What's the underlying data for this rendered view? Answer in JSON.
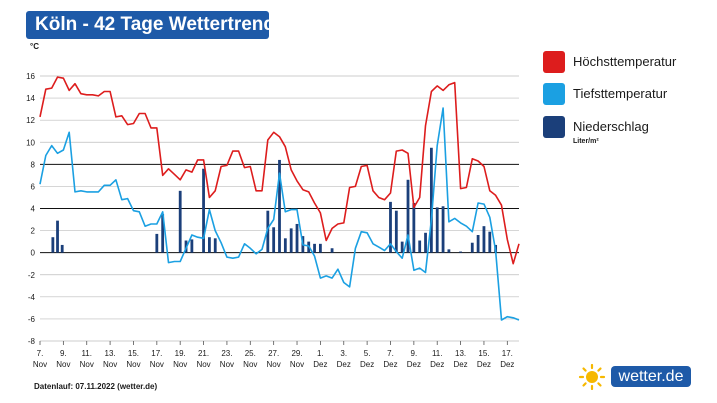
{
  "header": {
    "title": "Köln - 42 Tage Wettertrend"
  },
  "legend": {
    "items": [
      {
        "label": "Höchsttemperatur",
        "color": "#dd1d1d"
      },
      {
        "label": "Tiefsttemperatur",
        "color": "#1ba0e2"
      },
      {
        "label": "Niederschlag",
        "color": "#1b3f7a"
      }
    ],
    "precip_unit": "Liter/m²"
  },
  "footer": {
    "source": "Datenlauf: 07.11.2022 (wetter.de)"
  },
  "logo": {
    "text": "wetter.de"
  },
  "chart_data": {
    "type": "line",
    "ylabel": "°C",
    "ylim": [
      -8,
      16
    ],
    "yticks": [
      -8,
      -6,
      -4,
      -2,
      0,
      2,
      4,
      6,
      8,
      10,
      12,
      14,
      16
    ],
    "xlim": [
      7,
      48
    ],
    "x_ticks": [
      {
        "x": 7,
        "day": "7.",
        "month": "Nov"
      },
      {
        "x": 9,
        "day": "9.",
        "month": "Nov"
      },
      {
        "x": 11,
        "day": "11.",
        "month": "Nov"
      },
      {
        "x": 13,
        "day": "13.",
        "month": "Nov"
      },
      {
        "x": 15,
        "day": "15.",
        "month": "Nov"
      },
      {
        "x": 17,
        "day": "17.",
        "month": "Nov"
      },
      {
        "x": 19,
        "day": "19.",
        "month": "Nov"
      },
      {
        "x": 21,
        "day": "21.",
        "month": "Nov"
      },
      {
        "x": 23,
        "day": "23.",
        "month": "Nov"
      },
      {
        "x": 25,
        "day": "25.",
        "month": "Nov"
      },
      {
        "x": 27,
        "day": "27.",
        "month": "Nov"
      },
      {
        "x": 29,
        "day": "29.",
        "month": "Nov"
      },
      {
        "x": 31,
        "day": "1.",
        "month": "Dez"
      },
      {
        "x": 33,
        "day": "3.",
        "month": "Dez"
      },
      {
        "x": 35,
        "day": "5.",
        "month": "Dez"
      },
      {
        "x": 37,
        "day": "7.",
        "month": "Dez"
      },
      {
        "x": 39,
        "day": "9.",
        "month": "Dez"
      },
      {
        "x": 41,
        "day": "11.",
        "month": "Dez"
      },
      {
        "x": 43,
        "day": "13.",
        "month": "Dez"
      },
      {
        "x": 45,
        "day": "15.",
        "month": "Dez"
      },
      {
        "x": 47,
        "day": "17.",
        "month": "Dez"
      }
    ],
    "series": [
      {
        "name": "Höchsttemperatur",
        "color": "#dd1d1d",
        "points": [
          [
            7,
            12.3
          ],
          [
            7.5,
            14.8
          ],
          [
            8,
            14.9
          ],
          [
            8.5,
            15.9
          ],
          [
            9,
            15.8
          ],
          [
            9.5,
            14.7
          ],
          [
            10,
            15.3
          ],
          [
            10.5,
            14.4
          ],
          [
            11,
            14.3
          ],
          [
            11.5,
            14.3
          ],
          [
            12,
            14.2
          ],
          [
            12.5,
            14.6
          ],
          [
            13,
            14.6
          ],
          [
            13.5,
            12.3
          ],
          [
            14,
            12.4
          ],
          [
            14.5,
            11.6
          ],
          [
            15,
            11.7
          ],
          [
            15.5,
            12.6
          ],
          [
            16,
            12.6
          ],
          [
            16.5,
            11.3
          ],
          [
            17,
            11.3
          ],
          [
            17.5,
            7.0
          ],
          [
            18,
            7.6
          ],
          [
            18.5,
            7.1
          ],
          [
            19,
            6.6
          ],
          [
            19.5,
            7.5
          ],
          [
            20,
            7.3
          ],
          [
            20.5,
            8.4
          ],
          [
            21,
            8.4
          ],
          [
            21.5,
            5.0
          ],
          [
            22,
            5.6
          ],
          [
            22.5,
            7.8
          ],
          [
            23,
            7.9
          ],
          [
            23.5,
            9.2
          ],
          [
            24,
            9.2
          ],
          [
            24.5,
            7.7
          ],
          [
            25,
            7.8
          ],
          [
            25.5,
            5.6
          ],
          [
            26,
            5.6
          ],
          [
            26.5,
            10.2
          ],
          [
            27,
            10.9
          ],
          [
            27.5,
            10.5
          ],
          [
            28,
            9.6
          ],
          [
            28.5,
            7.5
          ],
          [
            29,
            6.5
          ],
          [
            29.5,
            5.7
          ],
          [
            30,
            5.5
          ],
          [
            30.5,
            4.5
          ],
          [
            31,
            3.6
          ],
          [
            31.5,
            1.1
          ],
          [
            32,
            2.2
          ],
          [
            32.5,
            2.6
          ],
          [
            33,
            2.7
          ],
          [
            33.5,
            5.9
          ],
          [
            34,
            6.0
          ],
          [
            34.5,
            7.8
          ],
          [
            35,
            7.9
          ],
          [
            35.5,
            5.6
          ],
          [
            36,
            5.0
          ],
          [
            36.5,
            4.8
          ],
          [
            37,
            5.4
          ],
          [
            37.5,
            9.2
          ],
          [
            38,
            9.3
          ],
          [
            38.5,
            9.0
          ],
          [
            39,
            4.1
          ],
          [
            39.5,
            5.0
          ],
          [
            40,
            11.5
          ],
          [
            40.5,
            14.6
          ],
          [
            41,
            15.1
          ],
          [
            41.5,
            14.7
          ],
          [
            42,
            15.2
          ],
          [
            42.5,
            15.4
          ],
          [
            43,
            5.8
          ],
          [
            43.5,
            5.9
          ],
          [
            44,
            8.5
          ],
          [
            44.5,
            8.3
          ],
          [
            45,
            7.8
          ],
          [
            45.5,
            5.6
          ],
          [
            46,
            5.2
          ],
          [
            46.5,
            4.3
          ],
          [
            47,
            1.2
          ],
          [
            47.5,
            -1.0
          ],
          [
            48,
            0.8
          ]
        ]
      },
      {
        "name": "Tiefsttemperatur",
        "color": "#1ba0e2",
        "points": [
          [
            7,
            6.2
          ],
          [
            7.5,
            8.8
          ],
          [
            8,
            9.7
          ],
          [
            8.5,
            9.0
          ],
          [
            9,
            9.3
          ],
          [
            9.5,
            10.9
          ],
          [
            10,
            5.5
          ],
          [
            10.5,
            5.6
          ],
          [
            11,
            5.5
          ],
          [
            11.5,
            5.5
          ],
          [
            12,
            5.5
          ],
          [
            12.5,
            6.1
          ],
          [
            13,
            6.1
          ],
          [
            13.5,
            6.6
          ],
          [
            14,
            4.8
          ],
          [
            14.5,
            4.9
          ],
          [
            15,
            3.8
          ],
          [
            15.5,
            3.7
          ],
          [
            16,
            2.4
          ],
          [
            16.5,
            2.6
          ],
          [
            17,
            2.6
          ],
          [
            17.5,
            3.7
          ],
          [
            18,
            -0.9
          ],
          [
            18.5,
            -0.8
          ],
          [
            19,
            -0.8
          ],
          [
            19.5,
            0.4
          ],
          [
            20,
            1.6
          ],
          [
            20.5,
            1.4
          ],
          [
            21,
            1.3
          ],
          [
            21.5,
            3.9
          ],
          [
            22,
            2.0
          ],
          [
            22.5,
            0.9
          ],
          [
            23,
            -0.4
          ],
          [
            23.5,
            -0.5
          ],
          [
            24,
            -0.4
          ],
          [
            24.5,
            0.8
          ],
          [
            25,
            0.4
          ],
          [
            25.5,
            -0.1
          ],
          [
            26,
            0.3
          ],
          [
            26.5,
            2.2
          ],
          [
            27,
            3.0
          ],
          [
            27.5,
            7.2
          ],
          [
            28,
            3.7
          ],
          [
            28.5,
            3.9
          ],
          [
            29,
            3.9
          ],
          [
            29.5,
            0.7
          ],
          [
            30,
            0.6
          ],
          [
            30.5,
            -0.3
          ],
          [
            31,
            -2.3
          ],
          [
            31.5,
            -2.1
          ],
          [
            32,
            -2.3
          ],
          [
            32.5,
            -1.5
          ],
          [
            33,
            -2.7
          ],
          [
            33.5,
            -3.1
          ],
          [
            34,
            0.4
          ],
          [
            34.5,
            1.9
          ],
          [
            35,
            1.8
          ],
          [
            35.5,
            0.8
          ],
          [
            36,
            0.5
          ],
          [
            36.5,
            0.2
          ],
          [
            37,
            0.8
          ],
          [
            37.5,
            0.1
          ],
          [
            38,
            -0.5
          ],
          [
            38.5,
            1.6
          ],
          [
            39,
            -1.6
          ],
          [
            39.5,
            -1.4
          ],
          [
            40,
            -1.8
          ],
          [
            40.5,
            3.0
          ],
          [
            41,
            9.7
          ],
          [
            41.5,
            13.1
          ],
          [
            42,
            2.8
          ],
          [
            42.5,
            3.1
          ],
          [
            43,
            2.7
          ],
          [
            43.5,
            2.4
          ],
          [
            44,
            1.9
          ],
          [
            44.5,
            4.5
          ],
          [
            45,
            4.4
          ],
          [
            45.5,
            3.2
          ],
          [
            46,
            0.2
          ],
          [
            46.5,
            -6.1
          ],
          [
            47,
            -5.8
          ],
          [
            47.5,
            -5.9
          ],
          [
            48,
            -6.1
          ]
        ]
      }
    ],
    "precipitation": {
      "name": "Niederschlag",
      "color": "#1b3f7a",
      "bars": [
        [
          8.1,
          1.4
        ],
        [
          8.5,
          2.9
        ],
        [
          8.9,
          0.7
        ],
        [
          17,
          1.7
        ],
        [
          17.5,
          3.5
        ],
        [
          19,
          5.6
        ],
        [
          19.5,
          1.1
        ],
        [
          20,
          1.2
        ],
        [
          21,
          7.6
        ],
        [
          21.5,
          1.4
        ],
        [
          22,
          1.3
        ],
        [
          26.5,
          3.8
        ],
        [
          27,
          2.3
        ],
        [
          27.5,
          8.4
        ],
        [
          28,
          1.3
        ],
        [
          28.5,
          2.2
        ],
        [
          29,
          2.6
        ],
        [
          29.5,
          1.5
        ],
        [
          30,
          1.0
        ],
        [
          30.5,
          0.8
        ],
        [
          31,
          0.8
        ],
        [
          32,
          0.4
        ],
        [
          37,
          4.6
        ],
        [
          37.5,
          3.8
        ],
        [
          38,
          1.0
        ],
        [
          38.5,
          6.6
        ],
        [
          39,
          4.5
        ],
        [
          39.5,
          1.1
        ],
        [
          40,
          1.8
        ],
        [
          40.5,
          9.5
        ],
        [
          41,
          4.1
        ],
        [
          41.5,
          4.2
        ],
        [
          42,
          0.3
        ],
        [
          43,
          0.1
        ],
        [
          44,
          0.9
        ],
        [
          44.5,
          1.6
        ],
        [
          45,
          2.4
        ],
        [
          45.5,
          1.9
        ],
        [
          46,
          0.7
        ]
      ]
    }
  }
}
